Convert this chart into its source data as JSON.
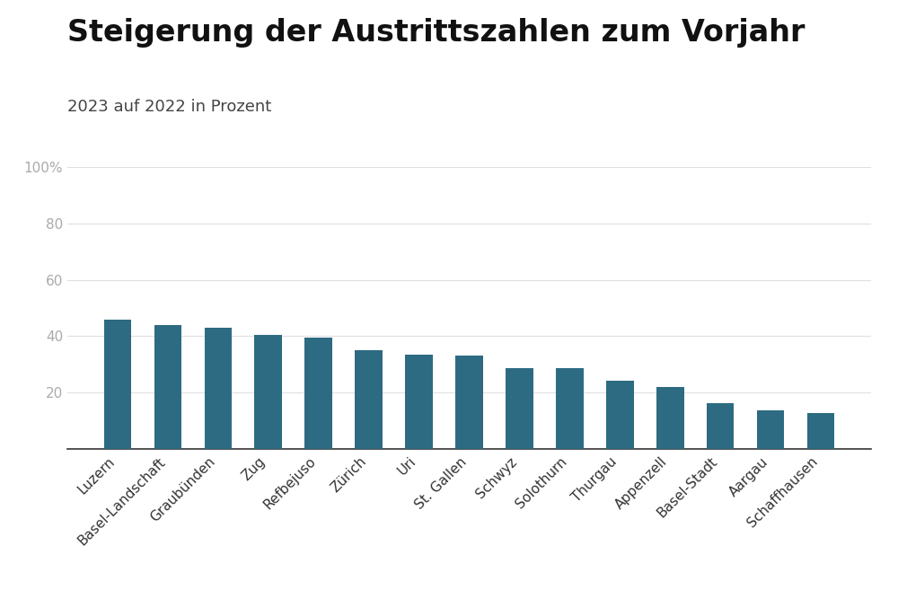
{
  "title": "Steigerung der Austrittszahlen zum Vorjahr",
  "subtitle": "2023 auf 2022 in Prozent",
  "categories": [
    "Luzern",
    "Basel-Landschaft",
    "Graubünden",
    "Zug",
    "Refbejuso",
    "Zürich",
    "Uri",
    "St. Gallen",
    "Schwyz",
    "Solothurn",
    "Thurgau",
    "Appenzell",
    "Basel-Stadt",
    "Aargau",
    "Schaffhausen"
  ],
  "values": [
    46.0,
    44.0,
    43.0,
    40.5,
    39.5,
    35.0,
    33.5,
    33.0,
    28.5,
    28.5,
    24.0,
    22.0,
    16.0,
    13.5,
    12.5
  ],
  "bar_color": "#2d6b82",
  "ylim": [
    0,
    100
  ],
  "yticks": [
    20,
    40,
    60,
    80,
    100
  ],
  "ytick_labels": [
    "20",
    "40",
    "60",
    "80",
    "100%"
  ],
  "background_color": "#ffffff",
  "title_fontsize": 24,
  "subtitle_fontsize": 13,
  "tick_label_fontsize": 11,
  "axis_label_color": "#aaaaaa",
  "grid_color": "#e0e0e0",
  "bar_width": 0.55
}
